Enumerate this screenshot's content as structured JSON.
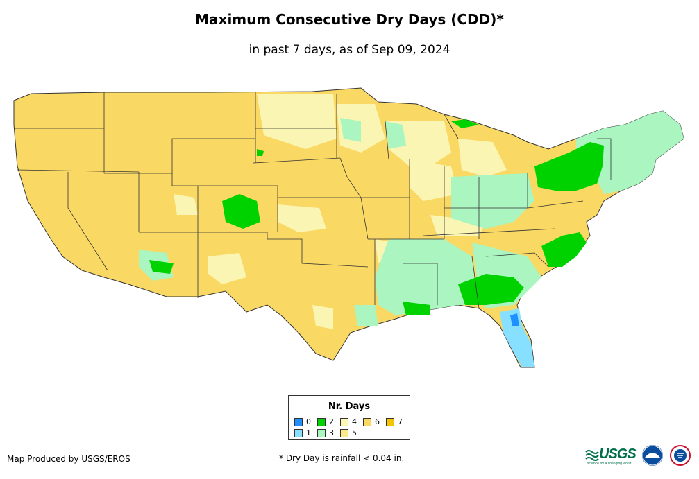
{
  "title": "Maximum Consecutive Dry Days (CDD)*",
  "subtitle": "in past 7 days, as of Sep 09, 2024",
  "legend": {
    "title": "Nr. Days",
    "items": [
      {
        "label": "0",
        "color": "#1e90ff"
      },
      {
        "label": "1",
        "color": "#87e0ff"
      },
      {
        "label": "2",
        "color": "#00d200"
      },
      {
        "label": "3",
        "color": "#aaf5c0"
      },
      {
        "label": "4",
        "color": "#fbf7b7"
      },
      {
        "label": "5",
        "color": "#fce98a"
      },
      {
        "label": "6",
        "color": "#f9d864"
      },
      {
        "label": "7",
        "color": "#f5c400"
      }
    ]
  },
  "footer": {
    "credit": "Map Produced by USGS/EROS",
    "note": "* Dry Day is rainfall < 0.04 in."
  },
  "logos": {
    "usgs": "USGS",
    "usgs_tagline": "science for a changing world",
    "noaa": "NOAA",
    "nws": "National Weather Service"
  },
  "colors": {
    "base": "#f9d864",
    "border": "#333333"
  }
}
